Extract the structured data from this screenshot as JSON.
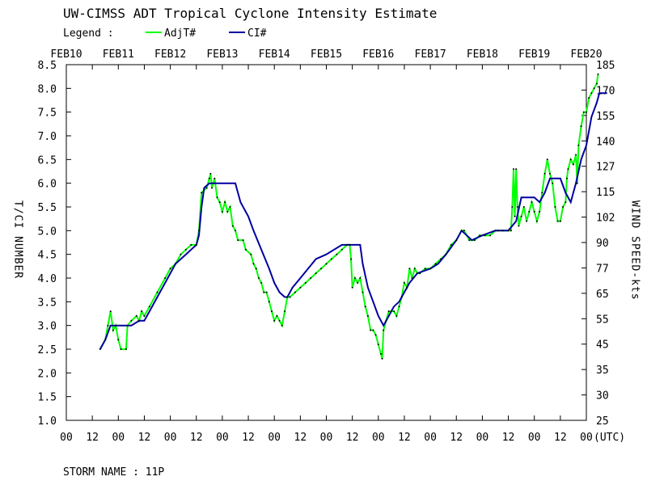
{
  "chart_data": {
    "type": "line",
    "title": "UW-CIMSS ADT Tropical Cyclone Intensity Estimate",
    "legend_label": "Legend :",
    "legend_placement": "top",
    "ylabel": "T/CI NUMBER",
    "y2label": "WIND SPEED-kts",
    "ylim": [
      1.0,
      8.5
    ],
    "yticks": [
      "1.0",
      "1.5",
      "2.0",
      "2.5",
      "3.0",
      "3.5",
      "4.0",
      "4.5",
      "5.0",
      "5.5",
      "6.0",
      "6.5",
      "7.0",
      "7.5",
      "8.0",
      "8.5"
    ],
    "y2ticks": [
      "25",
      "30",
      "35",
      "45",
      "55",
      "65",
      "77",
      "90",
      "102",
      "115",
      "127",
      "140",
      "155",
      "170",
      "185"
    ],
    "xlim": [
      0,
      20
    ],
    "date_labels": [
      "FEB10",
      "FEB11",
      "FEB12",
      "FEB13",
      "FEB14",
      "FEB15",
      "FEB16",
      "FEB17",
      "FEB18",
      "FEB19",
      "FEB20"
    ],
    "hour_labels": [
      "00",
      "12",
      "00",
      "12",
      "00",
      "12",
      "00",
      "12",
      "00",
      "12",
      "00",
      "12",
      "00",
      "12",
      "00",
      "12",
      "00",
      "12",
      "00",
      "12",
      "00"
    ],
    "utc_label": "(UTC)",
    "grid": false,
    "series": [
      {
        "name": "AdjT#",
        "color": "#00ff00",
        "points": [
          [
            1.3,
            2.5
          ],
          [
            1.5,
            2.7
          ],
          [
            1.6,
            3.0
          ],
          [
            1.7,
            3.3
          ],
          [
            1.8,
            2.9
          ],
          [
            1.9,
            3.0
          ],
          [
            2.0,
            2.7
          ],
          [
            2.1,
            2.5
          ],
          [
            2.3,
            2.5
          ],
          [
            2.35,
            3.0
          ],
          [
            2.5,
            3.1
          ],
          [
            2.7,
            3.2
          ],
          [
            2.8,
            3.1
          ],
          [
            2.9,
            3.3
          ],
          [
            3.0,
            3.2
          ],
          [
            3.2,
            3.4
          ],
          [
            3.5,
            3.7
          ],
          [
            3.8,
            4.0
          ],
          [
            4.0,
            4.2
          ],
          [
            4.2,
            4.3
          ],
          [
            4.4,
            4.5
          ],
          [
            4.6,
            4.6
          ],
          [
            4.8,
            4.7
          ],
          [
            5.0,
            4.7
          ],
          [
            5.1,
            5.0
          ],
          [
            5.2,
            5.8
          ],
          [
            5.4,
            5.9
          ],
          [
            5.5,
            6.1
          ],
          [
            5.55,
            6.2
          ],
          [
            5.6,
            5.9
          ],
          [
            5.7,
            6.1
          ],
          [
            5.8,
            5.7
          ],
          [
            5.9,
            5.6
          ],
          [
            6.0,
            5.4
          ],
          [
            6.1,
            5.6
          ],
          [
            6.2,
            5.4
          ],
          [
            6.3,
            5.5
          ],
          [
            6.4,
            5.1
          ],
          [
            6.5,
            5.0
          ],
          [
            6.6,
            4.8
          ],
          [
            6.8,
            4.8
          ],
          [
            6.9,
            4.6
          ],
          [
            7.1,
            4.5
          ],
          [
            7.2,
            4.3
          ],
          [
            7.3,
            4.2
          ],
          [
            7.4,
            4.0
          ],
          [
            7.5,
            3.9
          ],
          [
            7.6,
            3.7
          ],
          [
            7.7,
            3.7
          ],
          [
            7.8,
            3.5
          ],
          [
            7.9,
            3.3
          ],
          [
            8.0,
            3.1
          ],
          [
            8.1,
            3.2
          ],
          [
            8.2,
            3.1
          ],
          [
            8.3,
            3.0
          ],
          [
            8.4,
            3.3
          ],
          [
            8.5,
            3.6
          ],
          [
            8.6,
            3.6
          ],
          [
            8.8,
            3.7
          ],
          [
            9.0,
            3.8
          ],
          [
            9.2,
            3.9
          ],
          [
            9.4,
            4.0
          ],
          [
            9.6,
            4.1
          ],
          [
            9.8,
            4.2
          ],
          [
            10.0,
            4.3
          ],
          [
            10.2,
            4.4
          ],
          [
            10.4,
            4.5
          ],
          [
            10.6,
            4.6
          ],
          [
            10.8,
            4.7
          ],
          [
            10.9,
            4.7
          ],
          [
            10.95,
            4.4
          ],
          [
            11.0,
            3.8
          ],
          [
            11.1,
            4.0
          ],
          [
            11.2,
            3.9
          ],
          [
            11.3,
            4.0
          ],
          [
            11.4,
            3.7
          ],
          [
            11.5,
            3.4
          ],
          [
            11.6,
            3.2
          ],
          [
            11.7,
            2.9
          ],
          [
            11.8,
            2.9
          ],
          [
            11.9,
            2.8
          ],
          [
            12.0,
            2.6
          ],
          [
            12.1,
            2.4
          ],
          [
            12.15,
            2.3
          ],
          [
            12.2,
            2.9
          ],
          [
            12.3,
            3.1
          ],
          [
            12.4,
            3.3
          ],
          [
            12.5,
            3.3
          ],
          [
            12.6,
            3.3
          ],
          [
            12.7,
            3.2
          ],
          [
            12.8,
            3.4
          ],
          [
            12.9,
            3.6
          ],
          [
            13.0,
            3.9
          ],
          [
            13.1,
            3.8
          ],
          [
            13.2,
            4.2
          ],
          [
            13.3,
            4.0
          ],
          [
            13.4,
            4.2
          ],
          [
            13.5,
            4.1
          ],
          [
            13.6,
            4.1
          ],
          [
            13.8,
            4.2
          ],
          [
            14.0,
            4.2
          ],
          [
            14.2,
            4.3
          ],
          [
            14.4,
            4.4
          ],
          [
            14.6,
            4.5
          ],
          [
            14.8,
            4.7
          ],
          [
            15.0,
            4.8
          ],
          [
            15.2,
            5.0
          ],
          [
            15.3,
            5.0
          ],
          [
            15.5,
            4.8
          ],
          [
            15.7,
            4.8
          ],
          [
            15.9,
            4.9
          ],
          [
            16.1,
            4.9
          ],
          [
            16.3,
            4.9
          ],
          [
            16.5,
            5.0
          ],
          [
            16.6,
            5.0
          ],
          [
            16.8,
            5.0
          ],
          [
            17.0,
            5.0
          ],
          [
            17.1,
            5.0
          ],
          [
            17.15,
            5.5
          ],
          [
            17.2,
            6.3
          ],
          [
            17.25,
            5.3
          ],
          [
            17.3,
            6.3
          ],
          [
            17.35,
            5.5
          ],
          [
            17.4,
            5.1
          ],
          [
            17.5,
            5.3
          ],
          [
            17.6,
            5.5
          ],
          [
            17.7,
            5.2
          ],
          [
            17.8,
            5.4
          ],
          [
            17.9,
            5.6
          ],
          [
            18.0,
            5.4
          ],
          [
            18.1,
            5.2
          ],
          [
            18.2,
            5.4
          ],
          [
            18.3,
            5.8
          ],
          [
            18.4,
            6.2
          ],
          [
            18.5,
            6.5
          ],
          [
            18.6,
            6.2
          ],
          [
            18.7,
            6.0
          ],
          [
            18.8,
            5.5
          ],
          [
            18.9,
            5.2
          ],
          [
            19.0,
            5.2
          ],
          [
            19.1,
            5.5
          ],
          [
            19.2,
            5.6
          ],
          [
            19.25,
            6.1
          ],
          [
            19.3,
            6.3
          ],
          [
            19.4,
            6.5
          ],
          [
            19.5,
            6.4
          ],
          [
            19.6,
            6.6
          ],
          [
            19.65,
            6.0
          ],
          [
            19.7,
            6.8
          ],
          [
            19.8,
            7.2
          ],
          [
            19.9,
            7.5
          ],
          [
            20.0,
            7.5
          ],
          [
            20.1,
            7.8
          ],
          [
            20.2,
            7.9
          ],
          [
            20.3,
            8.0
          ],
          [
            20.4,
            8.1
          ],
          [
            20.45,
            8.3
          ]
        ]
      },
      {
        "name": "CI#",
        "color": "#0000a0",
        "points": [
          [
            1.3,
            2.5
          ],
          [
            1.5,
            2.7
          ],
          [
            1.7,
            3.0
          ],
          [
            2.0,
            3.0
          ],
          [
            2.3,
            3.0
          ],
          [
            2.5,
            3.0
          ],
          [
            2.8,
            3.1
          ],
          [
            3.0,
            3.1
          ],
          [
            3.2,
            3.3
          ],
          [
            3.5,
            3.6
          ],
          [
            3.8,
            3.9
          ],
          [
            4.0,
            4.1
          ],
          [
            4.2,
            4.3
          ],
          [
            4.4,
            4.4
          ],
          [
            4.6,
            4.5
          ],
          [
            4.8,
            4.6
          ],
          [
            5.0,
            4.7
          ],
          [
            5.1,
            4.9
          ],
          [
            5.2,
            5.5
          ],
          [
            5.3,
            5.9
          ],
          [
            5.5,
            6.0
          ],
          [
            6.0,
            6.0
          ],
          [
            6.5,
            6.0
          ],
          [
            6.7,
            5.6
          ],
          [
            6.9,
            5.4
          ],
          [
            7.0,
            5.3
          ],
          [
            7.2,
            5.0
          ],
          [
            7.5,
            4.6
          ],
          [
            7.8,
            4.2
          ],
          [
            8.0,
            3.9
          ],
          [
            8.2,
            3.7
          ],
          [
            8.4,
            3.6
          ],
          [
            8.5,
            3.6
          ],
          [
            8.7,
            3.8
          ],
          [
            9.0,
            4.0
          ],
          [
            9.3,
            4.2
          ],
          [
            9.6,
            4.4
          ],
          [
            10.0,
            4.5
          ],
          [
            10.3,
            4.6
          ],
          [
            10.6,
            4.7
          ],
          [
            11.0,
            4.7
          ],
          [
            11.3,
            4.7
          ],
          [
            11.4,
            4.3
          ],
          [
            11.6,
            3.8
          ],
          [
            11.8,
            3.5
          ],
          [
            12.0,
            3.2
          ],
          [
            12.2,
            3.0
          ],
          [
            12.4,
            3.2
          ],
          [
            12.6,
            3.4
          ],
          [
            12.8,
            3.5
          ],
          [
            13.0,
            3.7
          ],
          [
            13.2,
            3.9
          ],
          [
            13.5,
            4.1
          ],
          [
            14.0,
            4.2
          ],
          [
            14.3,
            4.3
          ],
          [
            14.6,
            4.5
          ],
          [
            15.0,
            4.8
          ],
          [
            15.2,
            5.0
          ],
          [
            15.4,
            4.9
          ],
          [
            15.6,
            4.8
          ],
          [
            16.0,
            4.9
          ],
          [
            16.5,
            5.0
          ],
          [
            17.0,
            5.0
          ],
          [
            17.3,
            5.2
          ],
          [
            17.5,
            5.7
          ],
          [
            18.0,
            5.7
          ],
          [
            18.2,
            5.6
          ],
          [
            18.4,
            5.8
          ],
          [
            18.6,
            6.1
          ],
          [
            19.0,
            6.1
          ],
          [
            19.2,
            5.8
          ],
          [
            19.4,
            5.6
          ],
          [
            19.6,
            6.0
          ],
          [
            19.8,
            6.5
          ],
          [
            20.0,
            6.8
          ],
          [
            20.2,
            7.4
          ],
          [
            20.4,
            7.7
          ],
          [
            20.5,
            7.9
          ],
          [
            20.8,
            7.9
          ]
        ]
      }
    ]
  },
  "footer": {
    "storm_name": "STORM NAME : 11P"
  }
}
